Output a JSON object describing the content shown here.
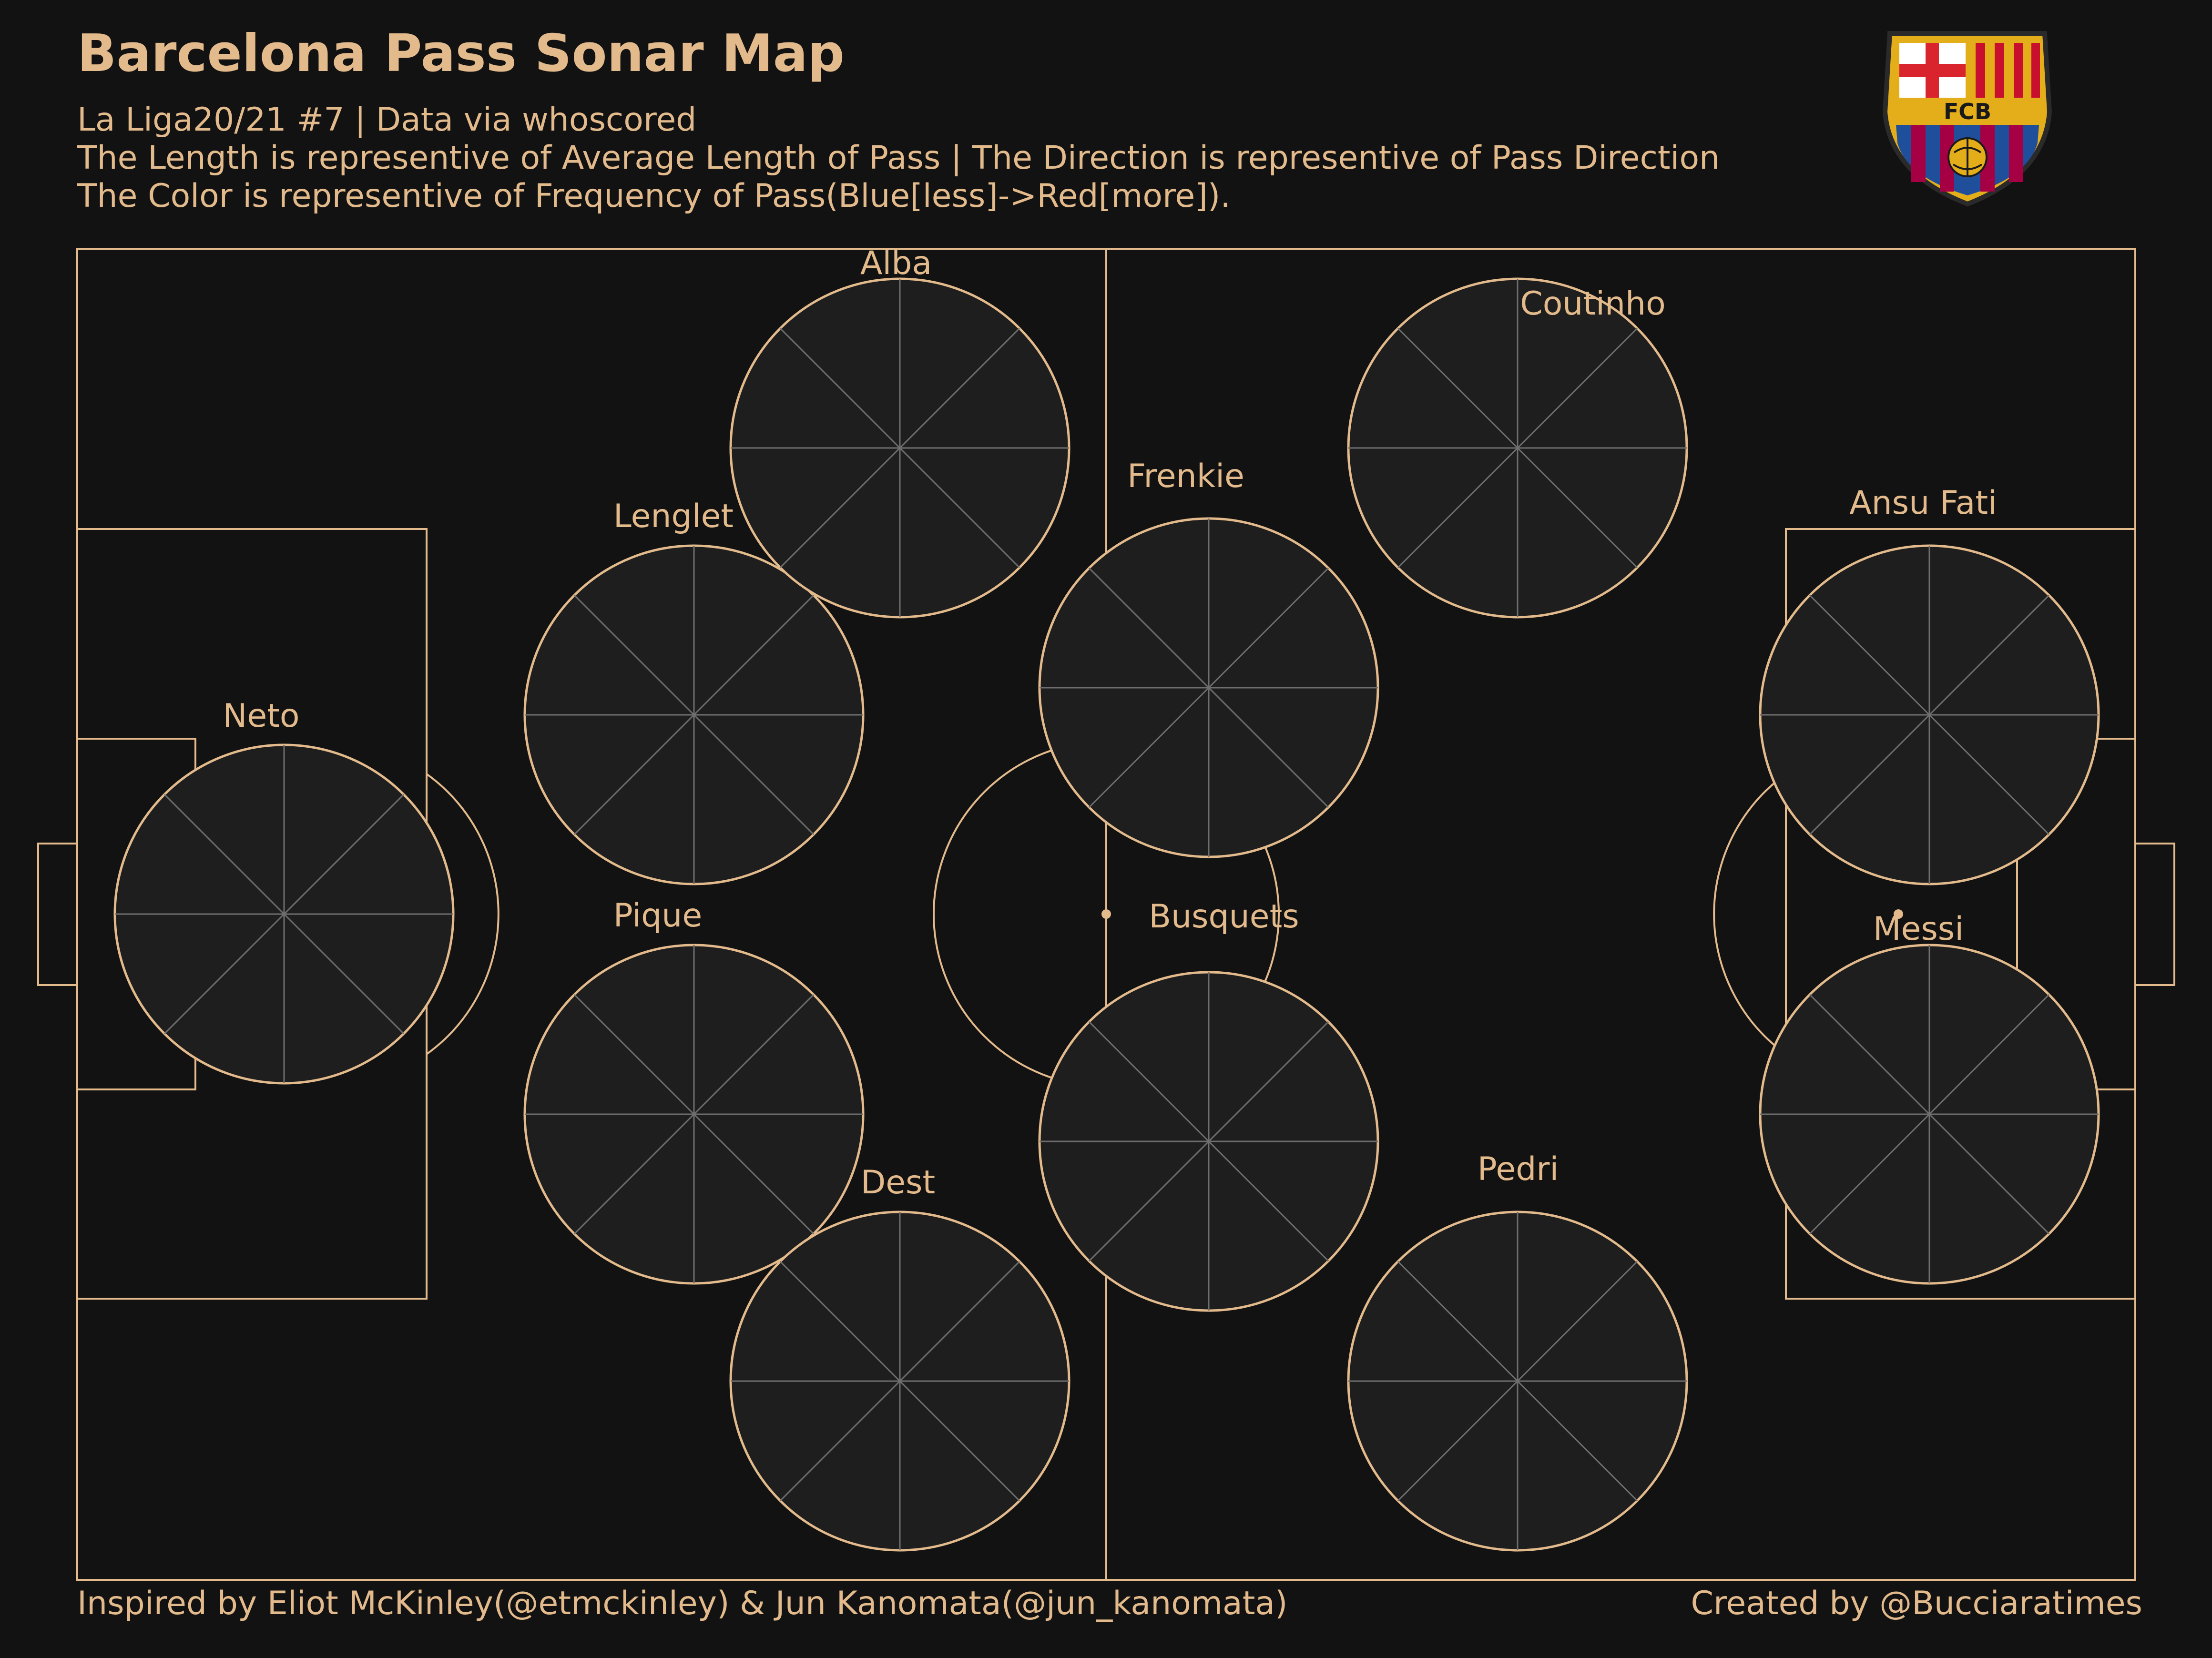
{
  "header": {
    "title": "Barcelona Pass Sonar Map",
    "subtitle_1": "La Liga20/21 #7 | Data via whoscored",
    "subtitle_2": "The Length is representive of Average Length of Pass | The Direction is representive of Pass Direction",
    "subtitle_3": "The Color is representive of Frequency of Pass(Blue[less]->Red[more])."
  },
  "footer": {
    "left": "Inspired by Eliot McKinley(@etmckinley) & Jun Kanomata(@jun_kanomata)",
    "right": "Created by @Bucciaratimes"
  },
  "logo": {
    "text": "FCB",
    "icon": "fc-barcelona-crest-icon"
  },
  "colors": {
    "background": "#121212",
    "lines": "#E3BA8C",
    "sonar_background": "#1E1E1E",
    "sonar_grid": "#6E6E6E",
    "scale": [
      "#3B7EBA",
      "#4BA0A8",
      "#5A4A96",
      "#6BBE9A",
      "#A8D48C",
      "#F0EFA6",
      "#F7D48A",
      "#EFAE63",
      "#E88B50",
      "#E0633F",
      "#C93848"
    ]
  },
  "chart_data": {
    "type": "polar-bar",
    "direction_bins_deg": [
      0,
      11.25,
      22.5,
      33.75,
      45,
      56.25,
      67.5,
      78.75,
      90,
      101.25,
      112.5,
      123.75,
      135,
      146.25,
      157.5,
      168.75,
      180,
      191.25,
      202.5,
      213.75,
      225,
      236.25,
      247.5,
      258.75,
      270,
      281.25,
      292.5,
      303.75,
      315,
      326.25,
      337.5,
      348.75
    ],
    "value_meaning": "average pass length (0-1 of sonar radius); frequency index 0 (less) - 10 (more)",
    "players": [
      {
        "name": "Neto",
        "length": [
          0.0,
          0.0,
          0.0,
          0.0,
          0.0,
          0.0,
          0.0,
          0.0,
          0.0,
          0.0,
          0.0,
          0.0,
          0.0,
          0.0,
          0.0,
          0.0,
          0.0,
          0.0,
          0.0,
          0.0,
          0.0,
          0.0,
          0.0,
          0.0,
          0.0,
          0.0,
          0.0,
          0.0,
          0.0,
          0.0,
          0.0,
          0.0
        ],
        "freq": [
          0,
          0,
          0,
          0,
          0,
          0,
          0,
          0,
          0,
          0,
          0,
          0,
          0,
          0,
          0,
          0,
          0,
          0,
          0,
          0,
          0,
          0,
          0,
          0,
          0,
          0,
          0,
          0,
          0,
          0,
          0,
          0
        ]
      },
      {
        "name": "Lenglet",
        "length": [
          0.0,
          0.0,
          0.0,
          0.0,
          0.0,
          0.0,
          0.0,
          0.0,
          0.0,
          0.0,
          0.0,
          0.0,
          0.0,
          0.0,
          0.0,
          0.0,
          0.0,
          0.0,
          0.0,
          0.0,
          0.0,
          0.0,
          0.0,
          0.0,
          0.0,
          0.0,
          0.0,
          0.0,
          0.0,
          0.0,
          0.0,
          0.0
        ],
        "freq": [
          0,
          0,
          0,
          0,
          0,
          0,
          0,
          0,
          0,
          0,
          0,
          0,
          0,
          0,
          0,
          0,
          0,
          0,
          0,
          0,
          0,
          0,
          0,
          0,
          0,
          0,
          0,
          0,
          0,
          0,
          0,
          0
        ]
      },
      {
        "name": "Pique",
        "length": [
          0.0,
          0.0,
          0.0,
          0.0,
          0.0,
          0.0,
          0.0,
          0.0,
          0.0,
          0.0,
          0.0,
          0.0,
          0.0,
          0.0,
          0.0,
          0.0,
          0.0,
          0.0,
          0.0,
          0.0,
          0.0,
          0.0,
          0.0,
          0.0,
          0.0,
          0.0,
          0.0,
          0.0,
          0.0,
          0.0,
          0.0,
          0.0
        ],
        "freq": [
          0,
          0,
          0,
          0,
          0,
          0,
          0,
          0,
          0,
          0,
          0,
          0,
          0,
          0,
          0,
          0,
          0,
          0,
          0,
          0,
          0,
          0,
          0,
          0,
          0,
          0,
          0,
          0,
          0,
          0,
          0,
          0
        ]
      },
      {
        "name": "Alba",
        "length": [
          0.0,
          0.0,
          0.0,
          0.0,
          0.0,
          0.0,
          0.0,
          0.0,
          0.0,
          0.0,
          0.0,
          0.0,
          0.0,
          0.0,
          0.0,
          0.0,
          0.0,
          0.0,
          0.0,
          0.0,
          0.0,
          0.0,
          0.0,
          0.0,
          0.0,
          0.0,
          0.0,
          0.0,
          0.0,
          0.0,
          0.0,
          0.0
        ],
        "freq": [
          0,
          0,
          0,
          0,
          0,
          0,
          0,
          0,
          0,
          0,
          0,
          0,
          0,
          0,
          0,
          0,
          0,
          0,
          0,
          0,
          0,
          0,
          0,
          0,
          0,
          0,
          0,
          0,
          0,
          0,
          0,
          0
        ]
      },
      {
        "name": "Dest",
        "length": [
          0.0,
          0.0,
          0.0,
          0.0,
          0.0,
          0.0,
          0.0,
          0.0,
          0.0,
          0.0,
          0.0,
          0.0,
          0.0,
          0.0,
          0.0,
          0.0,
          0.0,
          0.0,
          0.0,
          0.0,
          0.0,
          0.0,
          0.0,
          0.0,
          0.0,
          0.0,
          0.0,
          0.0,
          0.0,
          0.0,
          0.0,
          0.0
        ],
        "freq": [
          0,
          0,
          0,
          0,
          0,
          0,
          0,
          0,
          0,
          0,
          0,
          0,
          0,
          0,
          0,
          0,
          0,
          0,
          0,
          0,
          0,
          0,
          0,
          0,
          0,
          0,
          0,
          0,
          0,
          0,
          0,
          0
        ]
      },
      {
        "name": "Frenkie",
        "length": [
          0.0,
          0.0,
          0.0,
          0.0,
          0.0,
          0.0,
          0.0,
          0.0,
          0.0,
          0.0,
          0.0,
          0.0,
          0.0,
          0.0,
          0.0,
          0.0,
          0.0,
          0.0,
          0.0,
          0.0,
          0.0,
          0.0,
          0.0,
          0.0,
          0.0,
          0.0,
          0.0,
          0.0,
          0.0,
          0.0,
          0.0,
          0.0
        ],
        "freq": [
          0,
          0,
          0,
          0,
          0,
          0,
          0,
          0,
          0,
          0,
          0,
          0,
          0,
          0,
          0,
          0,
          0,
          0,
          0,
          0,
          0,
          0,
          0,
          0,
          0,
          0,
          0,
          0,
          0,
          0,
          0,
          0
        ]
      },
      {
        "name": "Busquets",
        "length": [
          0.0,
          0.0,
          0.0,
          0.0,
          0.0,
          0.0,
          0.0,
          0.0,
          0.0,
          0.0,
          0.0,
          0.0,
          0.0,
          0.0,
          0.0,
          0.0,
          0.0,
          0.0,
          0.0,
          0.0,
          0.0,
          0.0,
          0.0,
          0.0,
          0.0,
          0.0,
          0.0,
          0.0,
          0.0,
          0.0,
          0.0,
          0.0
        ],
        "freq": [
          0,
          0,
          0,
          0,
          0,
          0,
          0,
          0,
          0,
          0,
          0,
          0,
          0,
          0,
          0,
          0,
          0,
          0,
          0,
          0,
          0,
          0,
          0,
          0,
          0,
          0,
          0,
          0,
          0,
          0,
          0,
          0
        ]
      },
      {
        "name": "Coutinho",
        "length": [
          0.0,
          0.0,
          0.0,
          0.0,
          0.0,
          0.0,
          0.0,
          0.0,
          0.0,
          0.0,
          0.0,
          0.0,
          0.0,
          0.0,
          0.0,
          0.0,
          0.0,
          0.0,
          0.0,
          0.0,
          0.0,
          0.0,
          0.0,
          0.0,
          0.0,
          0.0,
          0.0,
          0.0,
          0.0,
          0.0,
          0.0,
          0.0
        ],
        "freq": [
          0,
          0,
          0,
          0,
          0,
          0,
          0,
          0,
          0,
          0,
          0,
          0,
          0,
          0,
          0,
          0,
          0,
          0,
          0,
          0,
          0,
          0,
          0,
          0,
          0,
          0,
          0,
          0,
          0,
          0,
          0,
          0
        ]
      },
      {
        "name": "Pedri",
        "length": [
          0.0,
          0.0,
          0.0,
          0.0,
          0.0,
          0.0,
          0.0,
          0.0,
          0.0,
          0.0,
          0.0,
          0.0,
          0.0,
          0.0,
          0.0,
          0.0,
          0.0,
          0.0,
          0.0,
          0.0,
          0.0,
          0.0,
          0.0,
          0.0,
          0.0,
          0.0,
          0.0,
          0.0,
          0.0,
          0.0,
          0.0,
          0.0
        ],
        "freq": [
          0,
          0,
          0,
          0,
          0,
          0,
          0,
          0,
          0,
          0,
          0,
          0,
          0,
          0,
          0,
          0,
          0,
          0,
          0,
          0,
          0,
          0,
          0,
          0,
          0,
          0,
          0,
          0,
          0,
          0,
          0,
          0
        ]
      },
      {
        "name": "Ansu Fati",
        "length": [
          0.0,
          0.0,
          0.0,
          0.0,
          0.0,
          0.0,
          0.0,
          0.0,
          0.0,
          0.0,
          0.0,
          0.0,
          0.0,
          0.0,
          0.0,
          0.0,
          0.0,
          0.0,
          0.0,
          0.0,
          0.0,
          0.0,
          0.0,
          0.0,
          0.0,
          0.0,
          0.0,
          0.0,
          0.0,
          0.0,
          0.0,
          0.0
        ],
        "freq": [
          0,
          0,
          0,
          0,
          0,
          0,
          0,
          0,
          0,
          0,
          0,
          0,
          0,
          0,
          0,
          0,
          0,
          0,
          0,
          0,
          0,
          0,
          0,
          0,
          0,
          0,
          0,
          0,
          0,
          0,
          0,
          0
        ]
      },
      {
        "name": "Messi",
        "length": [
          0.0,
          0.0,
          0.0,
          0.0,
          0.0,
          0.0,
          0.0,
          0.0,
          0.0,
          0.0,
          0.0,
          0.0,
          0.0,
          0.0,
          0.0,
          0.0,
          0.0,
          0.0,
          0.0,
          0.0,
          0.0,
          0.0,
          0.0,
          0.0,
          0.0,
          0.0,
          0.0,
          0.0,
          0.0,
          0.0,
          0.0,
          0.0
        ],
        "freq": [
          0,
          0,
          0,
          0,
          0,
          0,
          0,
          0,
          0,
          0,
          0,
          0,
          0,
          0,
          0,
          0,
          0,
          0,
          0,
          0,
          0,
          0,
          0,
          0,
          0,
          0,
          0,
          0,
          0,
          0,
          0,
          0
        ]
      }
    ]
  }
}
